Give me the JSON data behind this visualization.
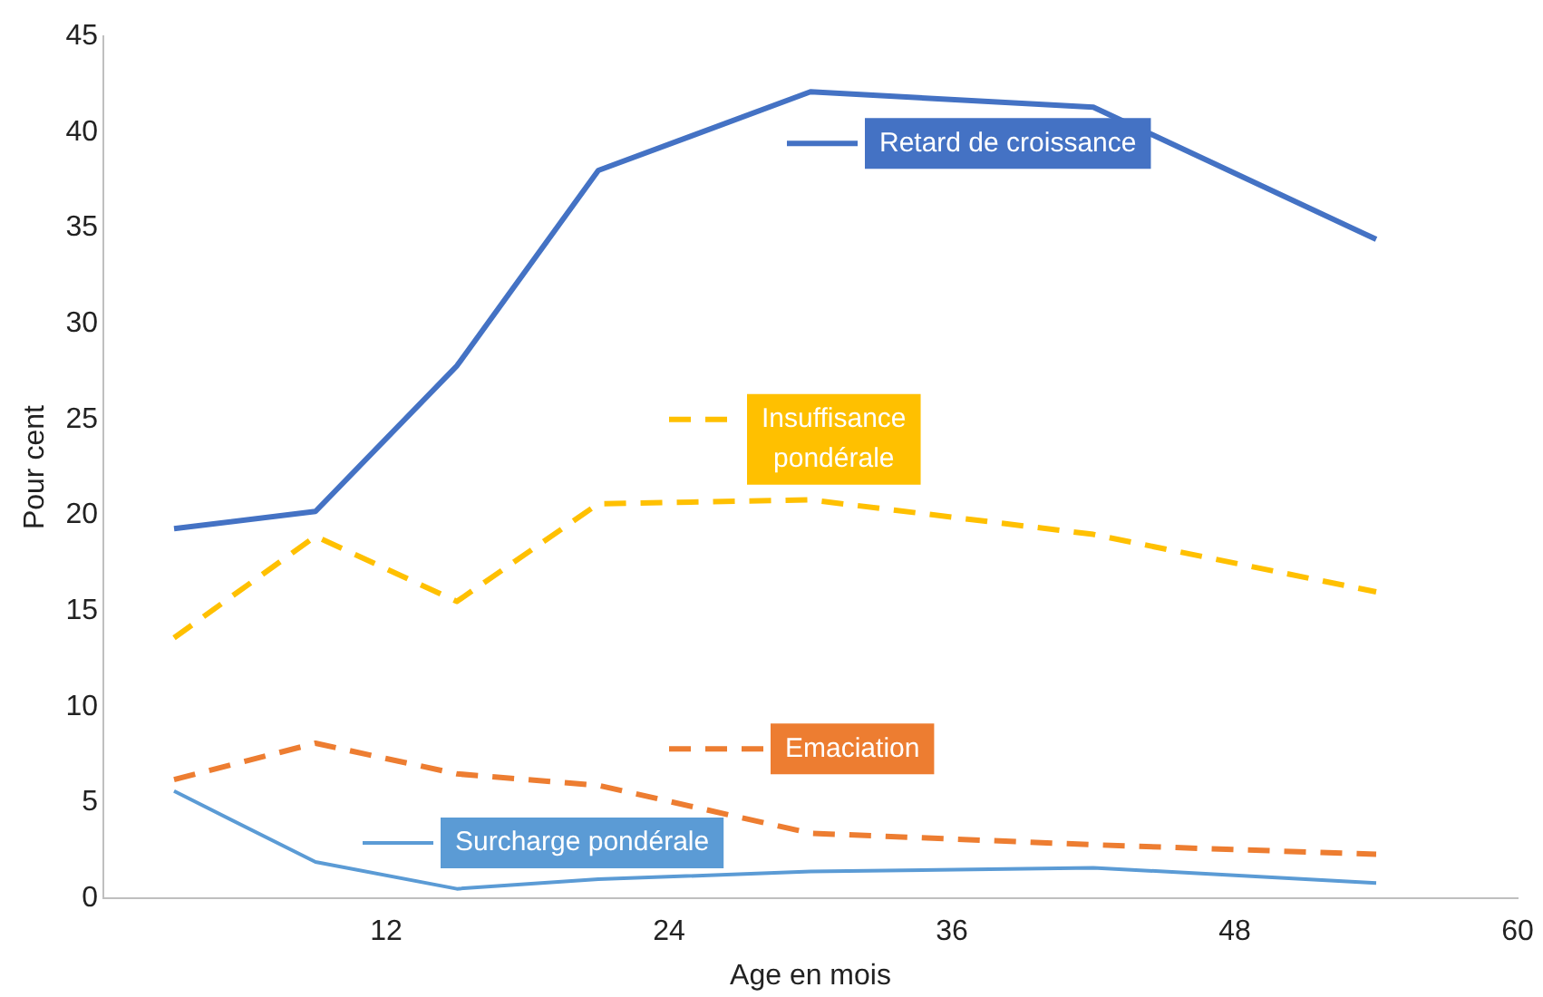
{
  "chart_data": {
    "type": "line",
    "xlabel": "Age en mois",
    "ylabel": "Pour cent",
    "x": [
      3,
      9,
      15,
      21,
      30,
      42,
      54
    ],
    "xlim": [
      0,
      60
    ],
    "xticks": [
      12,
      24,
      36,
      48,
      60
    ],
    "legend": "center",
    "ylim": [
      0,
      45
    ],
    "yticks": [
      0,
      5,
      10,
      15,
      20,
      25,
      30,
      35,
      40,
      45
    ],
    "grid": false,
    "marker": "none",
    "series": [
      {
        "name": "Retard de croissance",
        "color": "#4472c4",
        "line_style": "solid",
        "values": [
          19.3,
          20.2,
          27.8,
          38,
          42.1,
          41.3,
          34.4
        ]
      },
      {
        "name": "Insuffisance pondérale",
        "color": "#ffc000",
        "line_style": "dashed",
        "values": [
          13.6,
          18.9,
          15.5,
          20.6,
          20.8,
          19,
          16
        ]
      },
      {
        "name": "Emaciation",
        "color": "#ed7d31",
        "line_style": "dashed",
        "values": [
          6.2,
          8.1,
          6.5,
          5.9,
          3.4,
          2.8,
          2.3
        ]
      },
      {
        "name": "Surcharge pondérale",
        "color": "#5b9bd5",
        "line_style": "solid",
        "values": [
          5.6,
          1.9,
          0.5,
          1,
          1.4,
          1.6,
          0.8
        ]
      }
    ]
  }
}
